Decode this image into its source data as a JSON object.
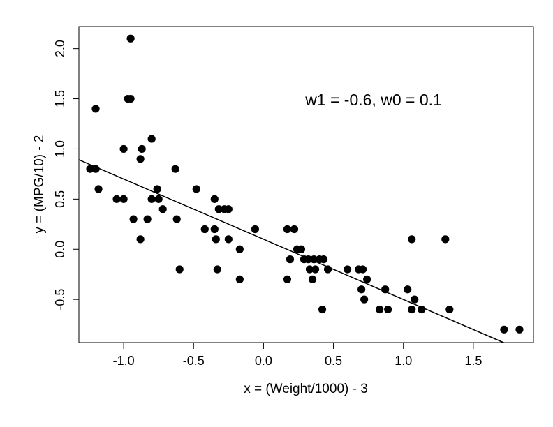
{
  "chart_data": {
    "type": "scatter",
    "title": "",
    "xlabel": "x = (Weight/1000) - 3",
    "ylabel": "y = (MPG/10) - 2",
    "xlim": [
      -1.32,
      1.93
    ],
    "ylim": [
      -0.93,
      2.22
    ],
    "xticks": [
      "-1.0",
      "-0.5",
      "0.0",
      "0.5",
      "1.0",
      "1.5"
    ],
    "xtick_values": [
      -1.0,
      -0.5,
      0.0,
      0.5,
      1.0,
      1.5
    ],
    "yticks": [
      "-0.5",
      "0.0",
      "0.5",
      "1.0",
      "1.5",
      "2.0"
    ],
    "ytick_values": [
      -0.5,
      0.0,
      0.5,
      1.0,
      1.5,
      2.0
    ],
    "grid": false,
    "annotation": "w1 = -0.6, w0 = 0.1",
    "line": {
      "slope": -0.6,
      "intercept": 0.1
    },
    "points": [
      [
        -0.95,
        2.1
      ],
      [
        -1.2,
        1.4
      ],
      [
        -0.97,
        1.5
      ],
      [
        -0.95,
        1.5
      ],
      [
        -0.8,
        1.1
      ],
      [
        -1.0,
        1.0
      ],
      [
        -0.87,
        1.0
      ],
      [
        -0.88,
        0.9
      ],
      [
        -1.24,
        0.8
      ],
      [
        -1.2,
        0.8
      ],
      [
        -0.63,
        0.8
      ],
      [
        -1.18,
        0.6
      ],
      [
        -0.76,
        0.6
      ],
      [
        -1.05,
        0.5
      ],
      [
        -1.0,
        0.5
      ],
      [
        -0.8,
        0.5
      ],
      [
        -0.75,
        0.5
      ],
      [
        -0.35,
        0.5
      ],
      [
        -0.72,
        0.4
      ],
      [
        -0.32,
        0.4
      ],
      [
        -0.28,
        0.4
      ],
      [
        -0.25,
        0.4
      ],
      [
        -0.93,
        0.3
      ],
      [
        -0.83,
        0.3
      ],
      [
        -0.62,
        0.3
      ],
      [
        -0.88,
        0.1
      ],
      [
        -0.48,
        0.6
      ],
      [
        -0.42,
        0.2
      ],
      [
        -0.35,
        0.2
      ],
      [
        -0.06,
        0.2
      ],
      [
        0.17,
        0.2
      ],
      [
        0.22,
        0.2
      ],
      [
        -0.34,
        0.1
      ],
      [
        -0.25,
        0.1
      ],
      [
        0.19,
        -0.1
      ],
      [
        0.24,
        0.0
      ],
      [
        0.27,
        0.0
      ],
      [
        -0.17,
        0.0
      ],
      [
        0.29,
        -0.1
      ],
      [
        0.32,
        -0.1
      ],
      [
        0.36,
        -0.1
      ],
      [
        0.4,
        -0.1
      ],
      [
        0.43,
        -0.1
      ],
      [
        0.33,
        -0.2
      ],
      [
        0.37,
        -0.2
      ],
      [
        0.46,
        -0.2
      ],
      [
        0.6,
        -0.2
      ],
      [
        0.68,
        -0.2
      ],
      [
        0.71,
        -0.2
      ],
      [
        -0.6,
        -0.2
      ],
      [
        -0.33,
        -0.2
      ],
      [
        0.35,
        -0.3
      ],
      [
        0.74,
        -0.3
      ],
      [
        0.17,
        -0.3
      ],
      [
        -0.17,
        -0.3
      ],
      [
        0.7,
        -0.4
      ],
      [
        0.87,
        -0.4
      ],
      [
        1.03,
        -0.4
      ],
      [
        0.72,
        -0.5
      ],
      [
        1.08,
        -0.5
      ],
      [
        0.42,
        -0.6
      ],
      [
        0.83,
        -0.6
      ],
      [
        0.89,
        -0.6
      ],
      [
        1.06,
        -0.6
      ],
      [
        1.13,
        -0.6
      ],
      [
        1.33,
        -0.6
      ],
      [
        1.06,
        0.1
      ],
      [
        1.3,
        0.1
      ],
      [
        1.72,
        -0.8
      ],
      [
        1.83,
        -0.8
      ]
    ]
  }
}
